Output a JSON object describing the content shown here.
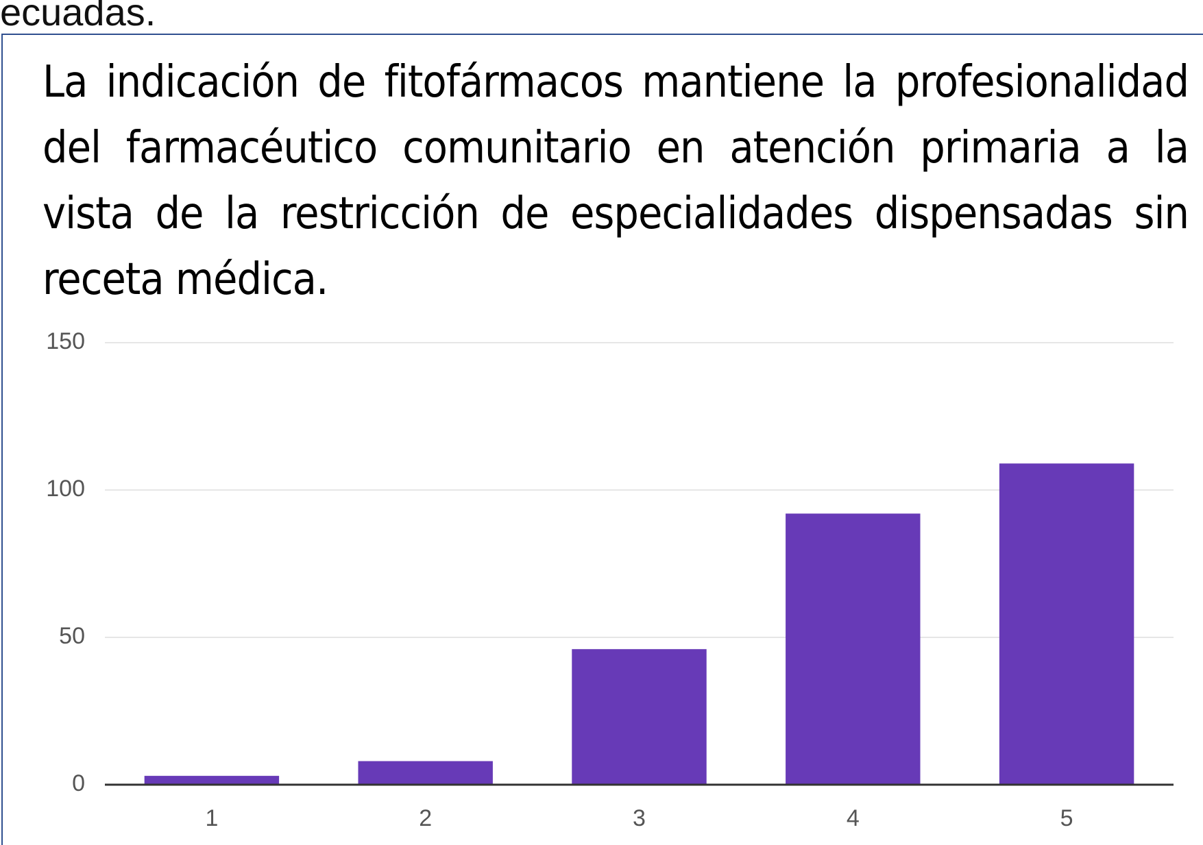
{
  "page_text": {
    "cut_heading": "ecuadas.",
    "paragraph": "La indicación de fitofármacos mantiene la profesionalidad del farmacéutico comunitario en atención primaria a la vista de la restricción de especialidades dispensadas sin receta médica."
  },
  "chart_data": {
    "type": "bar",
    "categories": [
      "1",
      "2",
      "3",
      "4",
      "5"
    ],
    "values": [
      3,
      8,
      46,
      92,
      109
    ],
    "color": "#673ab7",
    "ylim": [
      0,
      150
    ],
    "yticks": [
      0,
      50,
      100,
      150
    ],
    "grid": true
  }
}
